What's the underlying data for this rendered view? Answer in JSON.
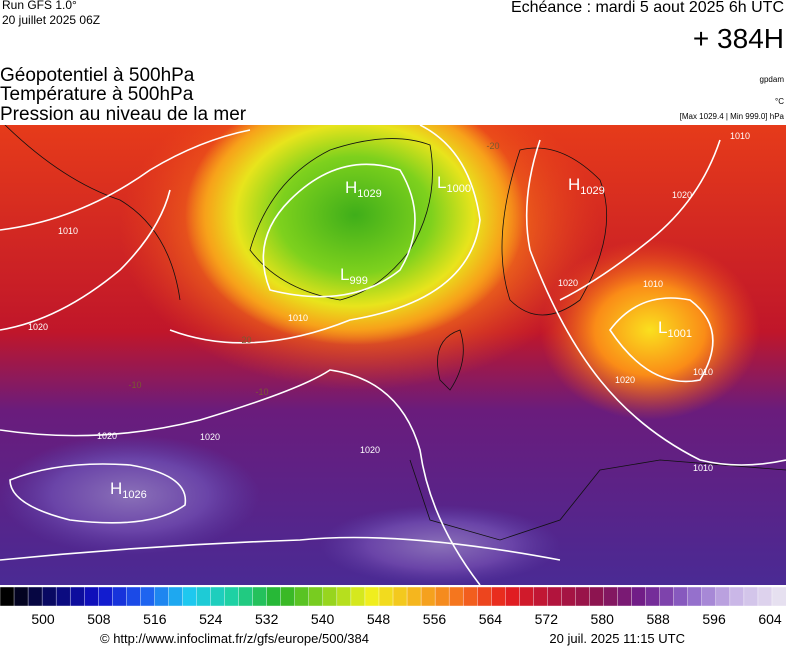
{
  "header": {
    "run": "Run GFS 1.0°",
    "run_date": "20 juillet 2025 06Z",
    "valid": "Echéance : mardi 5 aout 2025 6h UTC",
    "lead": "+ 384H"
  },
  "titles": [
    "Géopotentiel à 500hPa",
    "Température à 500hPa",
    "Pression au niveau de la mer"
  ],
  "units": {
    "geopotential": "gpdam",
    "temperature": "°C",
    "pressure": "[Max 1029.4 | Min 999.0] hPa"
  },
  "pressure_centers": [
    {
      "letter": "H",
      "value": "1029"
    },
    {
      "letter": "L",
      "value": "1000"
    },
    {
      "letter": "H",
      "value": "1029"
    },
    {
      "letter": "L",
      "value": "999"
    },
    {
      "letter": "L",
      "value": "1001"
    },
    {
      "letter": "H",
      "value": "1026"
    }
  ],
  "isobar_labels": [
    "1010",
    "1010",
    "1010",
    "1010",
    "1010",
    "1010",
    "1020",
    "1020",
    "1020",
    "1020",
    "1020",
    "1020",
    "1020"
  ],
  "temperature_labels": [
    "-20",
    "-20",
    "-10",
    "-10"
  ],
  "colorbar": {
    "ticks": [
      500,
      508,
      516,
      524,
      532,
      540,
      548,
      556,
      564,
      572,
      580,
      588,
      596,
      604
    ]
  },
  "footer": {
    "url": "© http://www.infoclimat.fr/z/gfs/europe/500/384",
    "timestamp": "20 juil. 2025 11:15 UTC"
  }
}
